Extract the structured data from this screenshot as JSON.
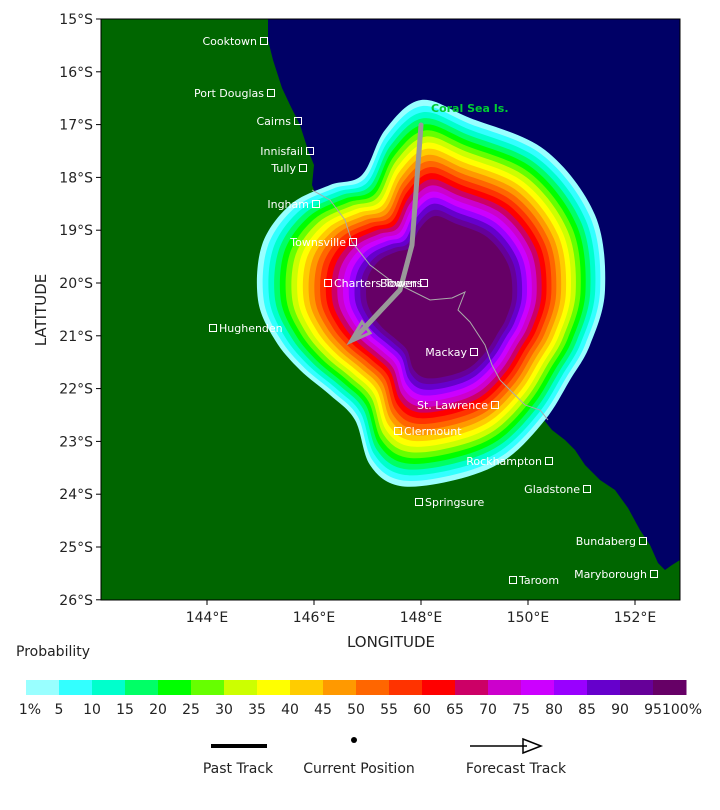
{
  "axes": {
    "x_title": "LONGITUDE",
    "y_title": "LATITUDE",
    "lat_labels": [
      "15°S",
      "16°S",
      "17°S",
      "18°S",
      "19°S",
      "20°S",
      "21°S",
      "22°S",
      "23°S",
      "24°S",
      "25°S",
      "26°S"
    ],
    "lon_labels": [
      "144°E",
      "146°E",
      "148°E",
      "150°E",
      "152°E"
    ]
  },
  "cities": [
    {
      "name": "Cooktown"
    },
    {
      "name": "Port Douglas"
    },
    {
      "name": "Cairns"
    },
    {
      "name": "Innisfail"
    },
    {
      "name": "Tully"
    },
    {
      "name": "Ingham"
    },
    {
      "name": "Townsville"
    },
    {
      "name": "Bowen"
    },
    {
      "name": "Charters Towers"
    },
    {
      "name": "Hughenden"
    },
    {
      "name": "Mackay"
    },
    {
      "name": "St. Lawrence"
    },
    {
      "name": "Clermount"
    },
    {
      "name": "Rockhampton"
    },
    {
      "name": "Gladstone"
    },
    {
      "name": "Springsure"
    },
    {
      "name": "Bundaberg"
    },
    {
      "name": "Maryborough"
    },
    {
      "name": "Taroom"
    }
  ],
  "island_label": "Coral Sea Is.",
  "legend": {
    "title": "Probability",
    "labels": [
      "1%",
      "5",
      "10",
      "15",
      "20",
      "25",
      "30",
      "35",
      "40",
      "45",
      "50",
      "55",
      "60",
      "65",
      "70",
      "75",
      "80",
      "85",
      "90",
      "95",
      "100%"
    ],
    "colors": [
      "#99ffff",
      "#33ffff",
      "#00ffcc",
      "#00ff66",
      "#00ff00",
      "#66ff00",
      "#ccff00",
      "#ffff00",
      "#ffcc00",
      "#ff9900",
      "#ff6600",
      "#ff3300",
      "#ff0000",
      "#cc0066",
      "#cc00cc",
      "#cc00ff",
      "#9900ff",
      "#6600cc",
      "#660099",
      "#660066"
    ],
    "items": [
      "Past Track",
      "Current Position",
      "Forecast Track"
    ]
  },
  "colors": {
    "land": "#006600",
    "ocean": "#000066",
    "track": "#999999"
  }
}
